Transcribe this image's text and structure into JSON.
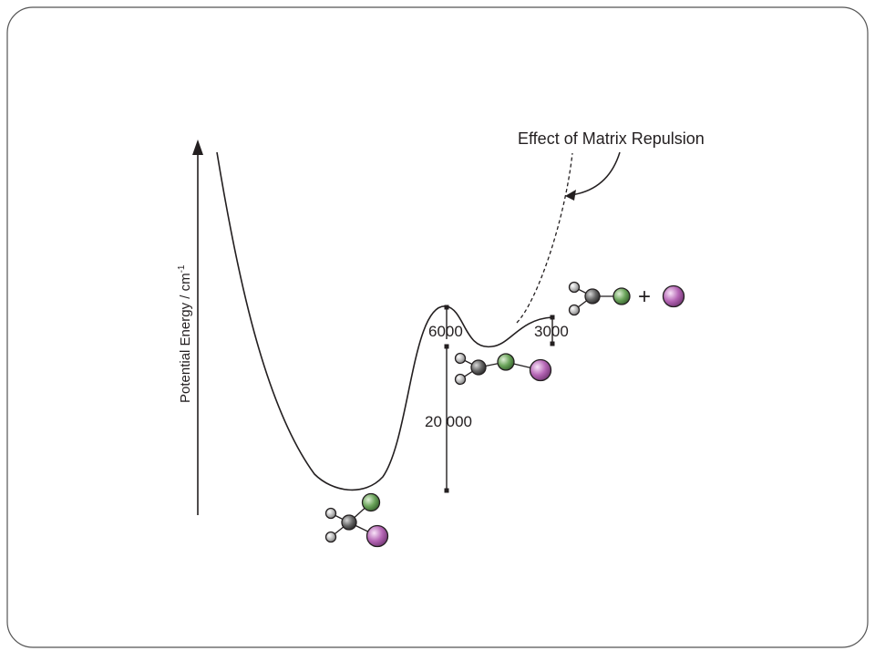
{
  "diagram": {
    "y_axis_label": "Potential Energy / cm",
    "y_axis_unit_exponent": "-1",
    "annotation": "Effect of Matrix Repulsion",
    "energies": {
      "well_depth": "20 000",
      "barrier": "6000",
      "dissociation": "3000"
    },
    "products_plus": "+"
  },
  "colors": {
    "frame": "#555555",
    "curve": "#231f20",
    "carbon": "#5a5a5a",
    "hydrogen": "#b9b9b9",
    "green_atom": "#6aa35a",
    "purple_atom": "#b566b5"
  }
}
